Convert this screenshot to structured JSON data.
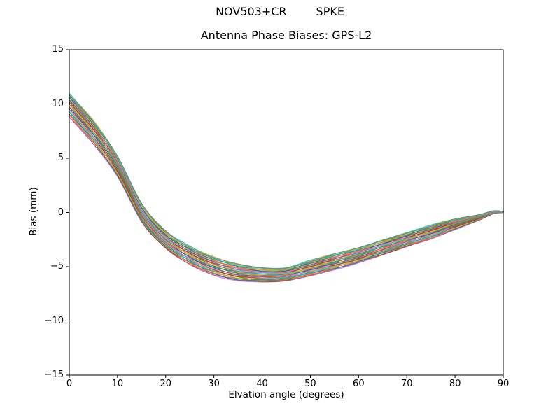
{
  "header": {
    "title_left": "NOV503+CR",
    "title_right": "SPKE"
  },
  "chart_data": {
    "type": "line",
    "title": "Antenna Phase Biases: GPS-L2",
    "suptitle": "NOV503+CR       SPKE",
    "xlabel": "Elvation angle (degrees)",
    "ylabel": "Bias (mm)",
    "xlim": [
      0,
      90
    ],
    "ylim": [
      -15,
      15
    ],
    "xticks": [
      0,
      10,
      20,
      30,
      40,
      50,
      60,
      70,
      80,
      90
    ],
    "yticks": [
      15,
      10,
      5,
      0,
      -5,
      -10,
      -15
    ],
    "grid": false,
    "legend": "none",
    "description": "Band of ~30 overlapping per-satellite antenna phase bias curves between the lower and upper envelopes; each line interpolates between envelopes and all converge to ~0 mm at 90 degrees elevation.",
    "x": [
      0,
      5,
      10,
      15,
      20,
      25,
      30,
      35,
      40,
      45,
      50,
      55,
      60,
      65,
      70,
      75,
      80,
      85,
      88,
      90
    ],
    "band_upper": [
      11.0,
      8.5,
      5.2,
      0.85,
      -1.7,
      -3.1,
      -4.1,
      -4.75,
      -5.1,
      -5.1,
      -4.4,
      -3.8,
      -3.25,
      -2.55,
      -1.85,
      -1.15,
      -0.6,
      -0.2,
      0.15,
      0.1
    ],
    "band_lower": [
      8.8,
      6.3,
      3.3,
      -0.85,
      -3.3,
      -4.8,
      -5.8,
      -6.3,
      -6.4,
      -6.3,
      -5.85,
      -5.3,
      -4.65,
      -3.9,
      -3.15,
      -2.45,
      -1.6,
      -0.7,
      -0.1,
      -0.02
    ],
    "n_lines": 30,
    "line_colors": [
      "#d62728",
      "#e377c2",
      "#9467bd",
      "#8c564b",
      "#1f77b4",
      "#ff7f0e",
      "#2ca02c",
      "#bcbd22",
      "#17becf",
      "#7f7f7f"
    ],
    "frame_color": "#000000",
    "background_color": "#ffffff"
  }
}
